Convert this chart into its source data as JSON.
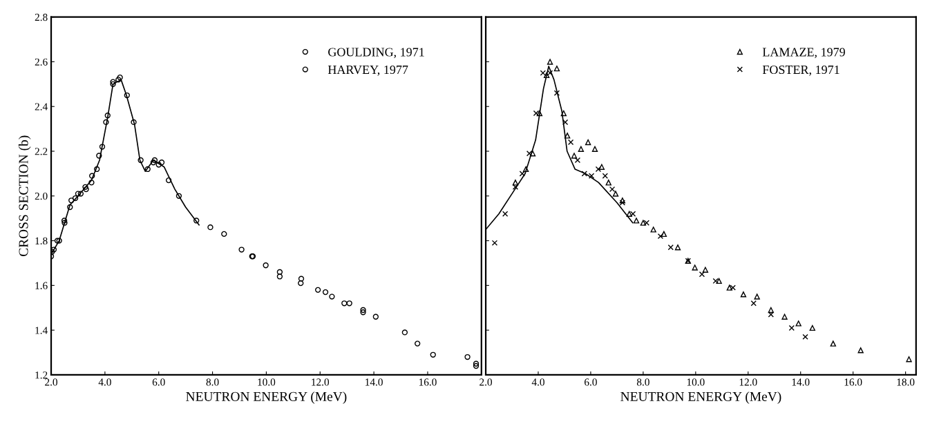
{
  "chart_data": [
    {
      "type": "scatter",
      "xlabel": "NEUTRON ENERGY (MeV)",
      "ylabel": "CROSS SECTION (b)",
      "xlim": [
        2,
        18
      ],
      "ylim": [
        1.2,
        2.8
      ],
      "xticks": [
        {
          "value": 2,
          "label": "2.0"
        },
        {
          "value": 4,
          "label": "4.0"
        },
        {
          "value": 6,
          "label": "6.0"
        },
        {
          "value": 8,
          "label": "8.0"
        },
        {
          "value": 10,
          "label": "10.0"
        },
        {
          "value": 12,
          "label": "12.0"
        },
        {
          "value": 14,
          "label": "14.0"
        },
        {
          "value": 16,
          "label": "16.0"
        }
      ],
      "yticks": [
        {
          "value": 1.2,
          "label": "1.2"
        },
        {
          "value": 1.4,
          "label": "1.4"
        },
        {
          "value": 1.6,
          "label": "1.6"
        },
        {
          "value": 1.8,
          "label": "1.8"
        },
        {
          "value": 2.0,
          "label": "2.0"
        },
        {
          "value": 2.2,
          "label": "2.2"
        },
        {
          "value": 2.4,
          "label": "2.4"
        },
        {
          "value": 2.6,
          "label": "2.6"
        },
        {
          "value": 2.8,
          "label": "2.8"
        }
      ],
      "grid": false,
      "legend": "top right",
      "series": [
        {
          "name": "GOULDING, 1971",
          "type": "scatter",
          "marker": "circle",
          "color": "#000000",
          "x": [
            2.03,
            2.23,
            2.49,
            2.75,
            3.0,
            3.27,
            3.52,
            3.78,
            4.04,
            4.3,
            4.56,
            4.82,
            5.07,
            5.33,
            5.59,
            5.85,
            6.11,
            6.37,
            6.75,
            7.4,
            7.92,
            8.43,
            9.08,
            9.47,
            9.98,
            10.5,
            11.28,
            11.92,
            12.44,
            13.09,
            13.6,
            14.07,
            15.15,
            15.62,
            17.48,
            17.8
          ],
          "values": [
            1.75,
            1.8,
            1.89,
            1.98,
            2.01,
            2.04,
            2.09,
            2.18,
            2.33,
            2.51,
            2.53,
            2.45,
            2.33,
            2.16,
            2.12,
            2.16,
            2.15,
            2.07,
            2.0,
            1.89,
            1.86,
            1.83,
            1.76,
            1.73,
            1.69,
            1.64,
            1.61,
            1.58,
            1.55,
            1.52,
            1.49,
            1.46,
            1.39,
            1.34,
            1.28,
            1.25
          ]
        },
        {
          "name": "HARVEY, 1977",
          "type": "scatter",
          "marker": "circle",
          "color": "#000000",
          "x": [
            2.0,
            2.1,
            2.3,
            2.5,
            2.7,
            2.9,
            3.1,
            3.3,
            3.5,
            3.7,
            3.9,
            4.1,
            4.3,
            4.5,
            5.8,
            6.0,
            9.5,
            10.5,
            11.3,
            12.2,
            12.9,
            13.6,
            16.2,
            17.8
          ],
          "values": [
            1.73,
            1.76,
            1.8,
            1.88,
            1.95,
            1.99,
            2.01,
            2.03,
            2.06,
            2.12,
            2.22,
            2.36,
            2.5,
            2.52,
            2.15,
            2.14,
            1.73,
            1.66,
            1.63,
            1.57,
            1.52,
            1.48,
            1.29,
            1.24
          ]
        },
        {
          "type": "line",
          "marker": "none",
          "color": "#000000",
          "x": [
            2.0,
            2.3,
            2.7,
            3.0,
            3.5,
            3.8,
            4.1,
            4.3,
            4.6,
            4.8,
            5.1,
            5.3,
            5.5,
            5.8,
            6.2,
            6.6,
            7.0,
            7.5
          ],
          "values": [
            1.74,
            1.8,
            1.96,
            2.0,
            2.07,
            2.16,
            2.35,
            2.5,
            2.52,
            2.45,
            2.32,
            2.16,
            2.11,
            2.16,
            2.13,
            2.03,
            1.95,
            1.87
          ]
        }
      ]
    },
    {
      "type": "scatter",
      "xlabel": "NEUTRON ENERGY (MeV)",
      "xlim": [
        2,
        18.4
      ],
      "ylim": [
        1.2,
        2.8
      ],
      "tick_labels": "x",
      "xticks": [
        {
          "value": 2,
          "label": "2.0"
        },
        {
          "value": 4,
          "label": "4.0"
        },
        {
          "value": 6,
          "label": "6.0"
        },
        {
          "value": 8,
          "label": "8.0"
        },
        {
          "value": 10,
          "label": "10.0"
        },
        {
          "value": 12,
          "label": "12.0"
        },
        {
          "value": 14,
          "label": "14.0"
        },
        {
          "value": 16,
          "label": "16.0"
        },
        {
          "value": 18,
          "label": "18.0"
        }
      ],
      "yticks": [
        1.2,
        1.4,
        1.6,
        1.8,
        2.0,
        2.2,
        2.4,
        2.6,
        2.8
      ],
      "grid": false,
      "legend": "top right",
      "series": [
        {
          "name": "LAMAZE, 1979",
          "type": "scatter",
          "marker": "triangle",
          "color": "#000000",
          "x": [
            3.13,
            3.53,
            3.79,
            4.05,
            4.32,
            4.45,
            4.71,
            4.97,
            5.11,
            5.37,
            5.63,
            5.9,
            6.16,
            6.42,
            6.68,
            6.95,
            7.21,
            7.47,
            7.74,
            8.0,
            8.39,
            8.79,
            9.32,
            9.71,
            9.97,
            10.37,
            10.89,
            11.29,
            11.82,
            12.34,
            12.87,
            13.39,
            13.92,
            14.45,
            15.24,
            16.29,
            18.13
          ],
          "values": [
            2.06,
            2.12,
            2.19,
            2.37,
            2.54,
            2.6,
            2.57,
            2.37,
            2.27,
            2.18,
            2.21,
            2.24,
            2.21,
            2.13,
            2.06,
            2.01,
            1.98,
            1.92,
            1.89,
            1.88,
            1.85,
            1.83,
            1.77,
            1.71,
            1.68,
            1.67,
            1.62,
            1.59,
            1.56,
            1.55,
            1.49,
            1.46,
            1.43,
            1.41,
            1.34,
            1.31,
            1.27
          ]
        },
        {
          "name": "FOSTER, 1971",
          "type": "scatter",
          "marker": "cross",
          "color": "#000000",
          "x": [
            2.34,
            2.74,
            3.13,
            3.39,
            3.66,
            3.92,
            4.18,
            4.45,
            4.71,
            5.03,
            5.24,
            5.5,
            5.76,
            6.03,
            6.29,
            6.55,
            6.82,
            7.21,
            7.61,
            8.13,
            8.66,
            9.05,
            9.71,
            10.24,
            10.76,
            11.42,
            12.21,
            12.87,
            13.66,
            14.18
          ],
          "values": [
            1.79,
            1.92,
            2.04,
            2.1,
            2.19,
            2.37,
            2.55,
            2.55,
            2.46,
            2.33,
            2.24,
            2.16,
            2.1,
            2.09,
            2.12,
            2.09,
            2.03,
            1.97,
            1.92,
            1.88,
            1.82,
            1.77,
            1.71,
            1.65,
            1.62,
            1.59,
            1.52,
            1.47,
            1.41,
            1.37
          ]
        },
        {
          "type": "line",
          "marker": "none",
          "color": "#000000",
          "x": [
            2.0,
            2.5,
            3.0,
            3.5,
            3.9,
            4.2,
            4.4,
            4.6,
            4.9,
            5.1,
            5.4,
            5.8,
            6.3,
            7.0,
            7.6
          ],
          "values": [
            1.85,
            1.92,
            2.01,
            2.1,
            2.25,
            2.48,
            2.58,
            2.52,
            2.38,
            2.2,
            2.12,
            2.1,
            2.06,
            1.97,
            1.88
          ]
        }
      ]
    }
  ]
}
